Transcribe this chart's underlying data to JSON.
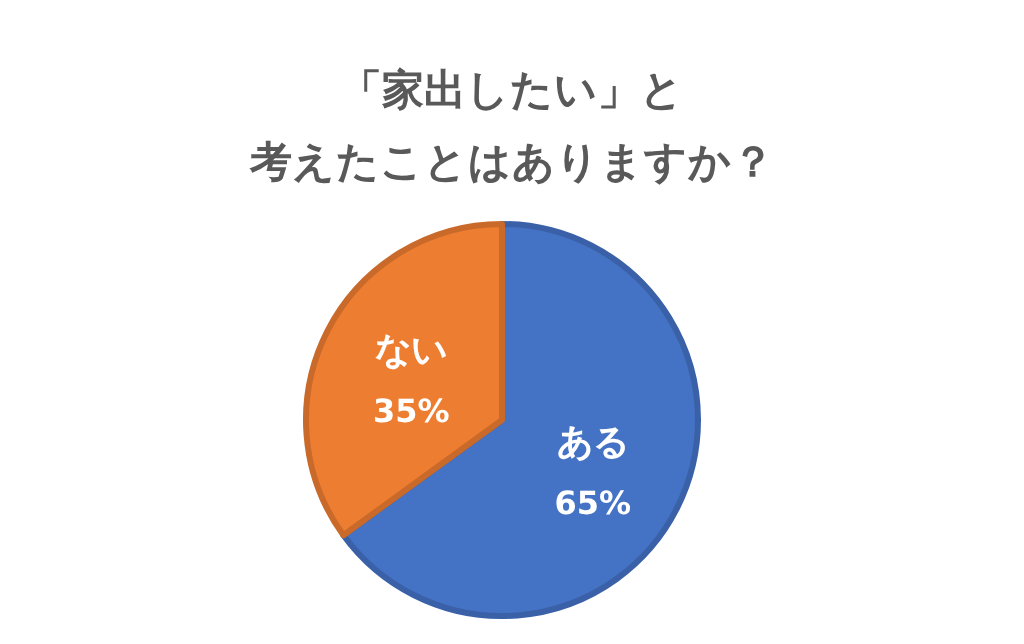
{
  "chart_data": {
    "type": "pie",
    "title": "「家出したい」と",
    "subtitle": "考えたことはありますか？",
    "categories": [
      "ある",
      "ない"
    ],
    "values": [
      65,
      35
    ],
    "value_labels": [
      "65%",
      "35%"
    ],
    "colors": [
      "#4472c4",
      "#ed7d31"
    ]
  }
}
